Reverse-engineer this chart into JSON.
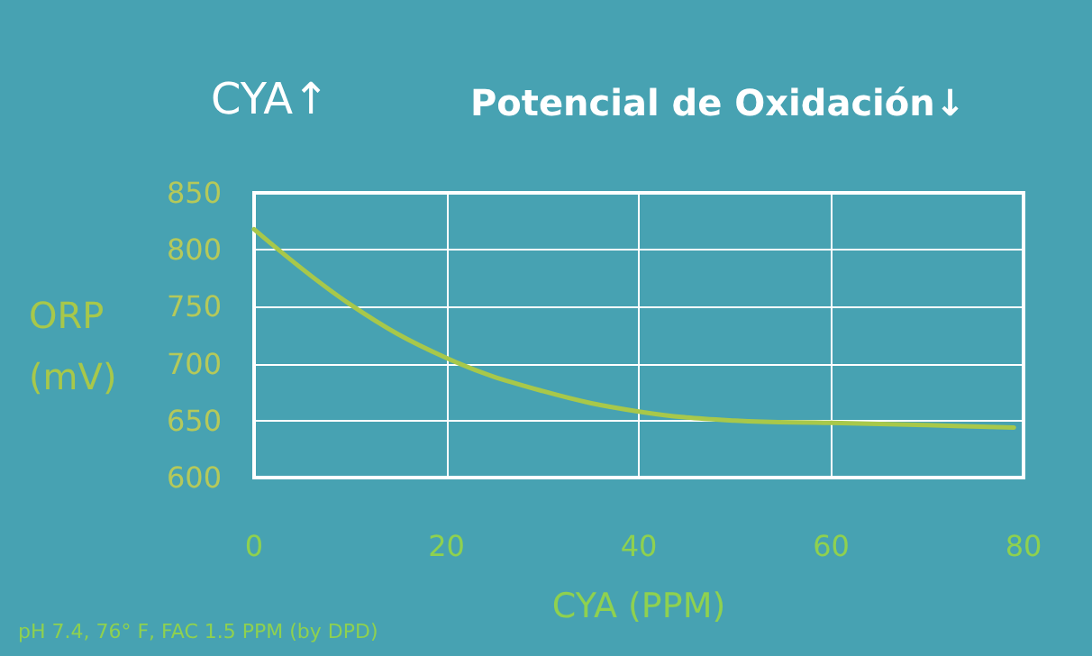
{
  "chart_data": {
    "type": "line",
    "title": "CYA↑",
    "subtitle": "Potencial de Oxidación↓",
    "xlabel": "CYA (PPM)",
    "ylabel": "ORP (mV)",
    "annotations": [
      "pH 7.4, 76° F, FAC 1.5 PPM (by DPD)"
    ],
    "x": [
      0,
      10,
      20,
      30,
      40,
      50,
      60,
      70,
      79
    ],
    "series": [
      {
        "color": "#a8c84a",
        "values": [
          818,
          752,
          705,
          676,
          658,
          650,
          648,
          646,
          644
        ]
      }
    ],
    "xlim": [
      0,
      80
    ],
    "xticks": [
      0,
      20,
      40,
      60,
      80
    ],
    "ylim": [
      600,
      850
    ],
    "yticks": [
      600,
      650,
      700,
      750,
      800,
      850
    ],
    "grid": true,
    "marker": "none",
    "line_style": "solid"
  }
}
